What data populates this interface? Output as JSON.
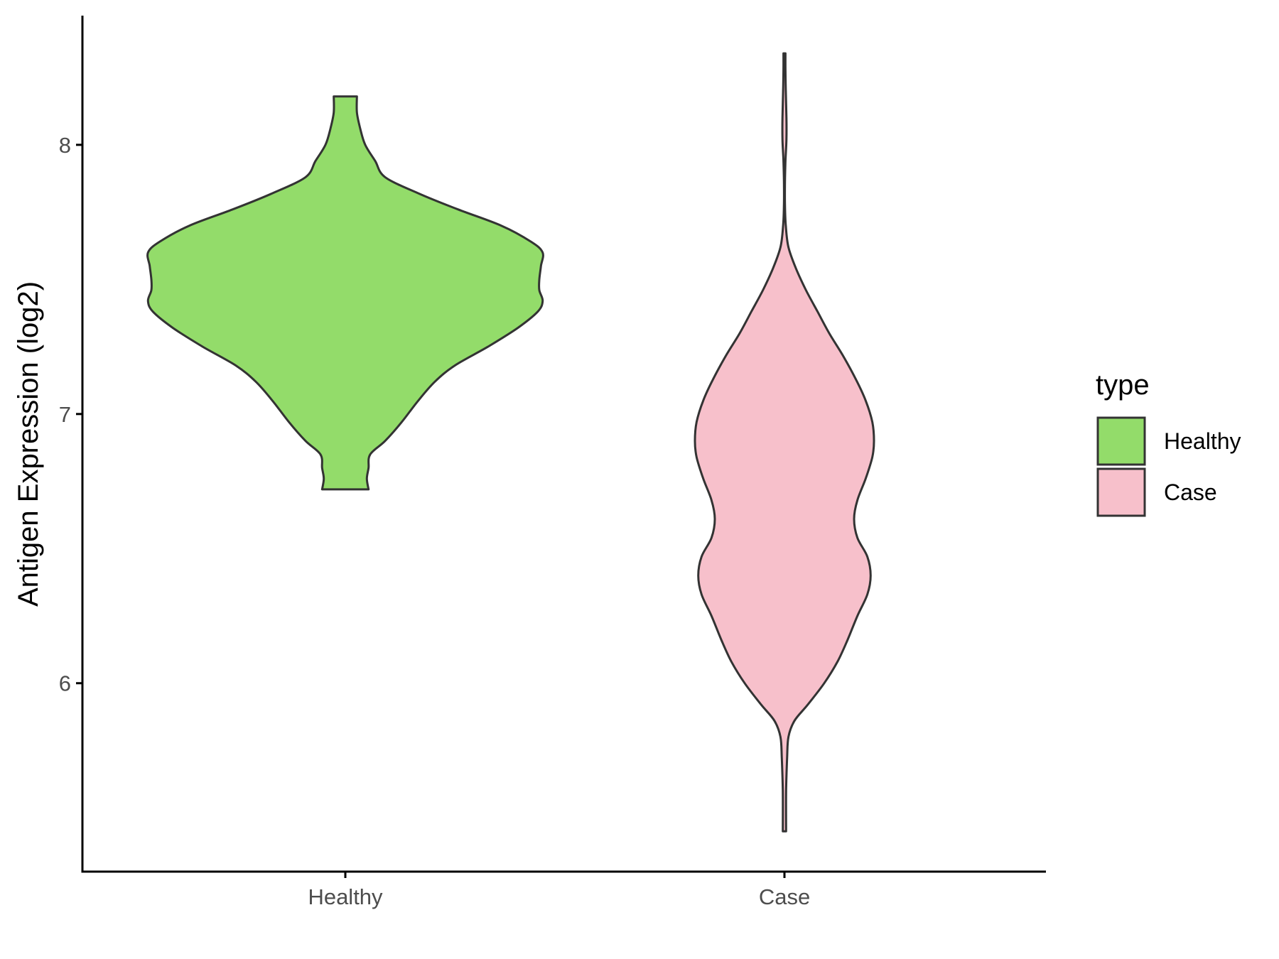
{
  "chart_data": {
    "type": "violin",
    "ylabel": "Antigen Expression (log2)",
    "xlabel": "",
    "categories": [
      "Healthy",
      "Case"
    ],
    "ylim": [
      5.3,
      8.48
    ],
    "yticks": [
      6,
      7,
      8
    ],
    "legend": {
      "title": "type",
      "placement": "right",
      "entries": [
        {
          "label": "Healthy",
          "color": "#93dc6a"
        },
        {
          "label": "Case",
          "color": "#f7c0cb"
        }
      ]
    },
    "series": [
      {
        "name": "Healthy",
        "color": "#93dc6a",
        "min": 6.72,
        "max": 8.18,
        "profile": [
          [
            6.72,
            0.07
          ],
          [
            6.76,
            0.065
          ],
          [
            6.8,
            0.07
          ],
          [
            6.85,
            0.075
          ],
          [
            6.9,
            0.12
          ],
          [
            6.97,
            0.17
          ],
          [
            7.05,
            0.22
          ],
          [
            7.12,
            0.27
          ],
          [
            7.18,
            0.33
          ],
          [
            7.25,
            0.43
          ],
          [
            7.32,
            0.52
          ],
          [
            7.38,
            0.58
          ],
          [
            7.42,
            0.595
          ],
          [
            7.46,
            0.585
          ],
          [
            7.5,
            0.585
          ],
          [
            7.55,
            0.59
          ],
          [
            7.6,
            0.595
          ],
          [
            7.64,
            0.56
          ],
          [
            7.7,
            0.47
          ],
          [
            7.76,
            0.34
          ],
          [
            7.82,
            0.22
          ],
          [
            7.88,
            0.12
          ],
          [
            7.94,
            0.09
          ],
          [
            8.0,
            0.06
          ],
          [
            8.06,
            0.045
          ],
          [
            8.12,
            0.035
          ],
          [
            8.18,
            0.035
          ]
        ]
      },
      {
        "name": "Case",
        "color": "#f7c0cb",
        "min": 5.45,
        "max": 8.34,
        "profile": [
          [
            5.45,
            0.005
          ],
          [
            5.6,
            0.005
          ],
          [
            5.72,
            0.008
          ],
          [
            5.8,
            0.012
          ],
          [
            5.86,
            0.03
          ],
          [
            5.92,
            0.07
          ],
          [
            6.0,
            0.12
          ],
          [
            6.08,
            0.16
          ],
          [
            6.16,
            0.19
          ],
          [
            6.25,
            0.22
          ],
          [
            6.33,
            0.25
          ],
          [
            6.4,
            0.26
          ],
          [
            6.47,
            0.25
          ],
          [
            6.54,
            0.22
          ],
          [
            6.61,
            0.21
          ],
          [
            6.68,
            0.22
          ],
          [
            6.76,
            0.245
          ],
          [
            6.84,
            0.265
          ],
          [
            6.9,
            0.27
          ],
          [
            6.97,
            0.265
          ],
          [
            7.05,
            0.245
          ],
          [
            7.13,
            0.215
          ],
          [
            7.22,
            0.175
          ],
          [
            7.3,
            0.135
          ],
          [
            7.38,
            0.1
          ],
          [
            7.46,
            0.065
          ],
          [
            7.54,
            0.035
          ],
          [
            7.62,
            0.012
          ],
          [
            7.7,
            0.004
          ],
          [
            7.78,
            0.0015
          ],
          [
            7.86,
            0.0015
          ],
          [
            7.94,
            0.003
          ],
          [
            8.02,
            0.006
          ],
          [
            8.1,
            0.006
          ],
          [
            8.2,
            0.004
          ],
          [
            8.28,
            0.003
          ],
          [
            8.34,
            0.003
          ]
        ]
      }
    ]
  }
}
